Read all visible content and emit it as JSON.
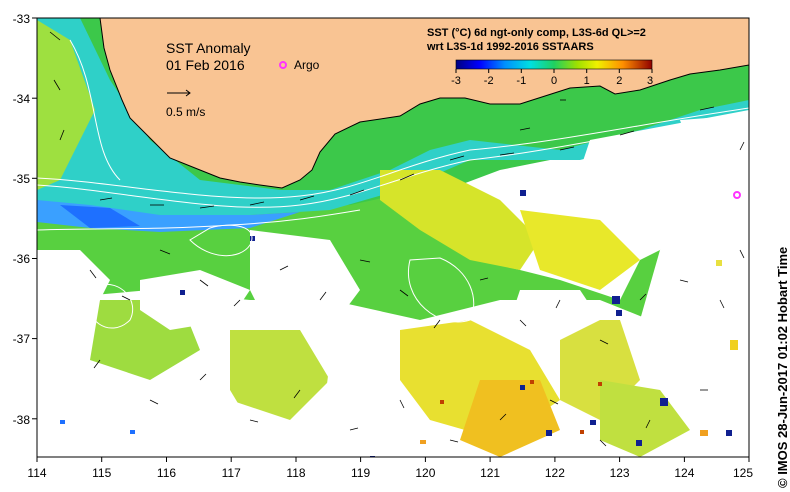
{
  "map": {
    "title": "SST Anomaly",
    "date": "01 Feb 2016",
    "argo_label": "Argo",
    "scale_label": "0.5 m/s",
    "info_line1": "SST (°C) 6d ngt-only comp, L3S-6d QL>=2",
    "info_line2": "wrt L3S-1d 1992-2016 SSTAARS",
    "credit": "© IMOS 28-Jun-2017 01:02 Hobart Time",
    "land_color": "#f9c493",
    "no_data_color": "#ffffff",
    "argo_color": "#ff33ff",
    "lon_ticks": [
      "114",
      "115",
      "116",
      "117",
      "118",
      "119",
      "120",
      "121",
      "122",
      "123",
      "124",
      "125"
    ],
    "lat_ticks": [
      "-33",
      "-34",
      "-35",
      "-36",
      "-37",
      "-38"
    ],
    "colorbar": {
      "ticks": [
        "-3",
        "-2",
        "-1",
        "0",
        "1",
        "2",
        "3"
      ],
      "colors": [
        "#000080",
        "#0000ff",
        "#0080ff",
        "#00d0ff",
        "#00e0a0",
        "#40d040",
        "#a0e000",
        "#e0e000",
        "#ffc000",
        "#ff8000",
        "#e03000",
        "#900000"
      ]
    }
  }
}
